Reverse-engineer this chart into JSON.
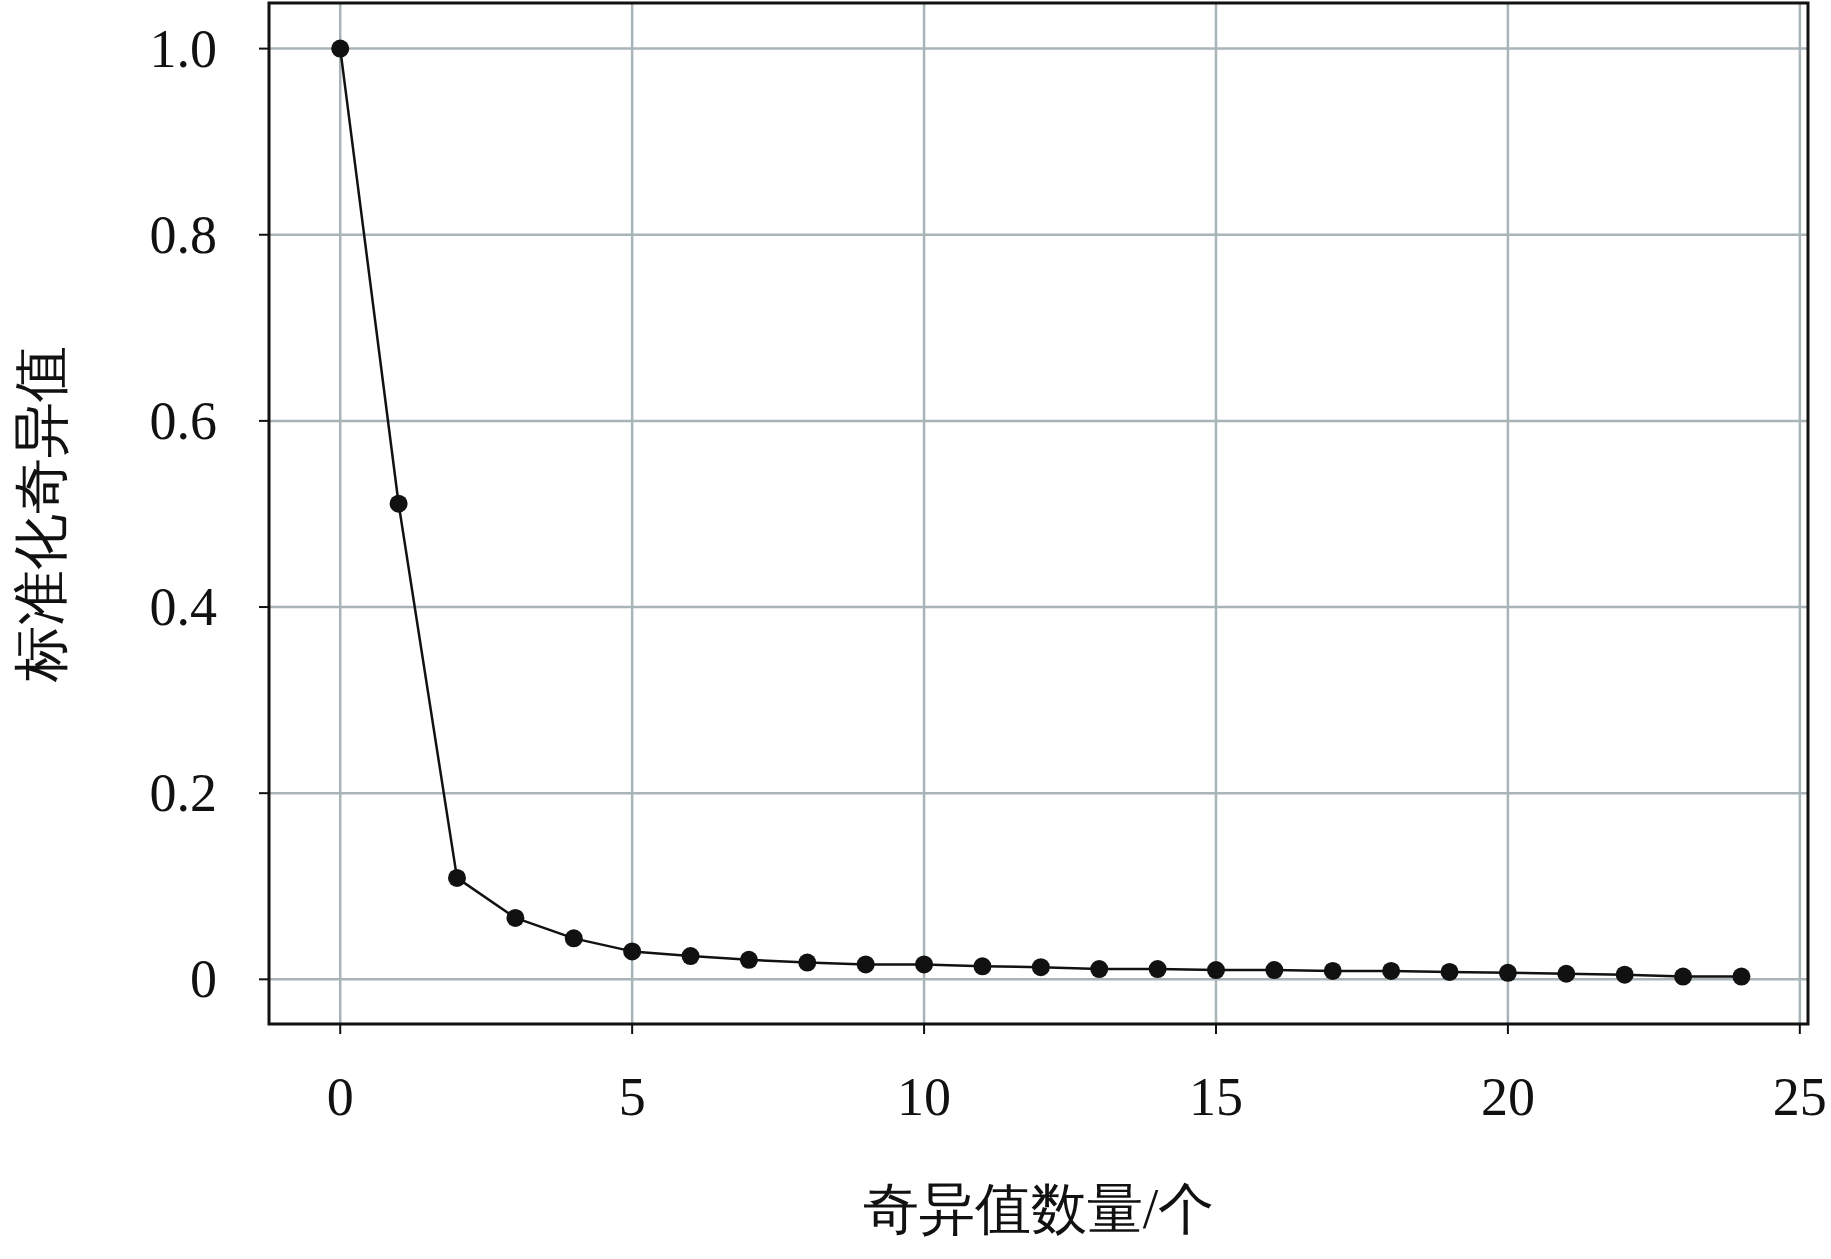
{
  "chart_data": {
    "type": "line",
    "xlabel": "奇异值数量/个",
    "ylabel": "标准化奇异值",
    "x": [
      0,
      1,
      2,
      3,
      4,
      5,
      6,
      7,
      8,
      9,
      10,
      11,
      12,
      13,
      14,
      15,
      16,
      17,
      18,
      19,
      20,
      21,
      22,
      23,
      24
    ],
    "series": [
      {
        "color": "#111111",
        "values": [
          1.0,
          0.511,
          0.109,
          0.066,
          0.044,
          0.03,
          0.025,
          0.021,
          0.018,
          0.016,
          0.016,
          0.014,
          0.013,
          0.011,
          0.011,
          0.01,
          0.01,
          0.009,
          0.009,
          0.008,
          0.007,
          0.006,
          0.005,
          0.003,
          0.003
        ]
      }
    ],
    "xlim": [
      -1.22,
      25.14
    ],
    "ylim": [
      -0.048,
      1.049
    ],
    "xticks": [
      0,
      5,
      10,
      15,
      20,
      25
    ],
    "yticks": [
      0,
      0.2,
      0.4,
      0.6,
      0.8,
      {
        "value": 1,
        "label": "1.0"
      }
    ],
    "grid": true,
    "marker": "circle",
    "line_style": "solid"
  }
}
